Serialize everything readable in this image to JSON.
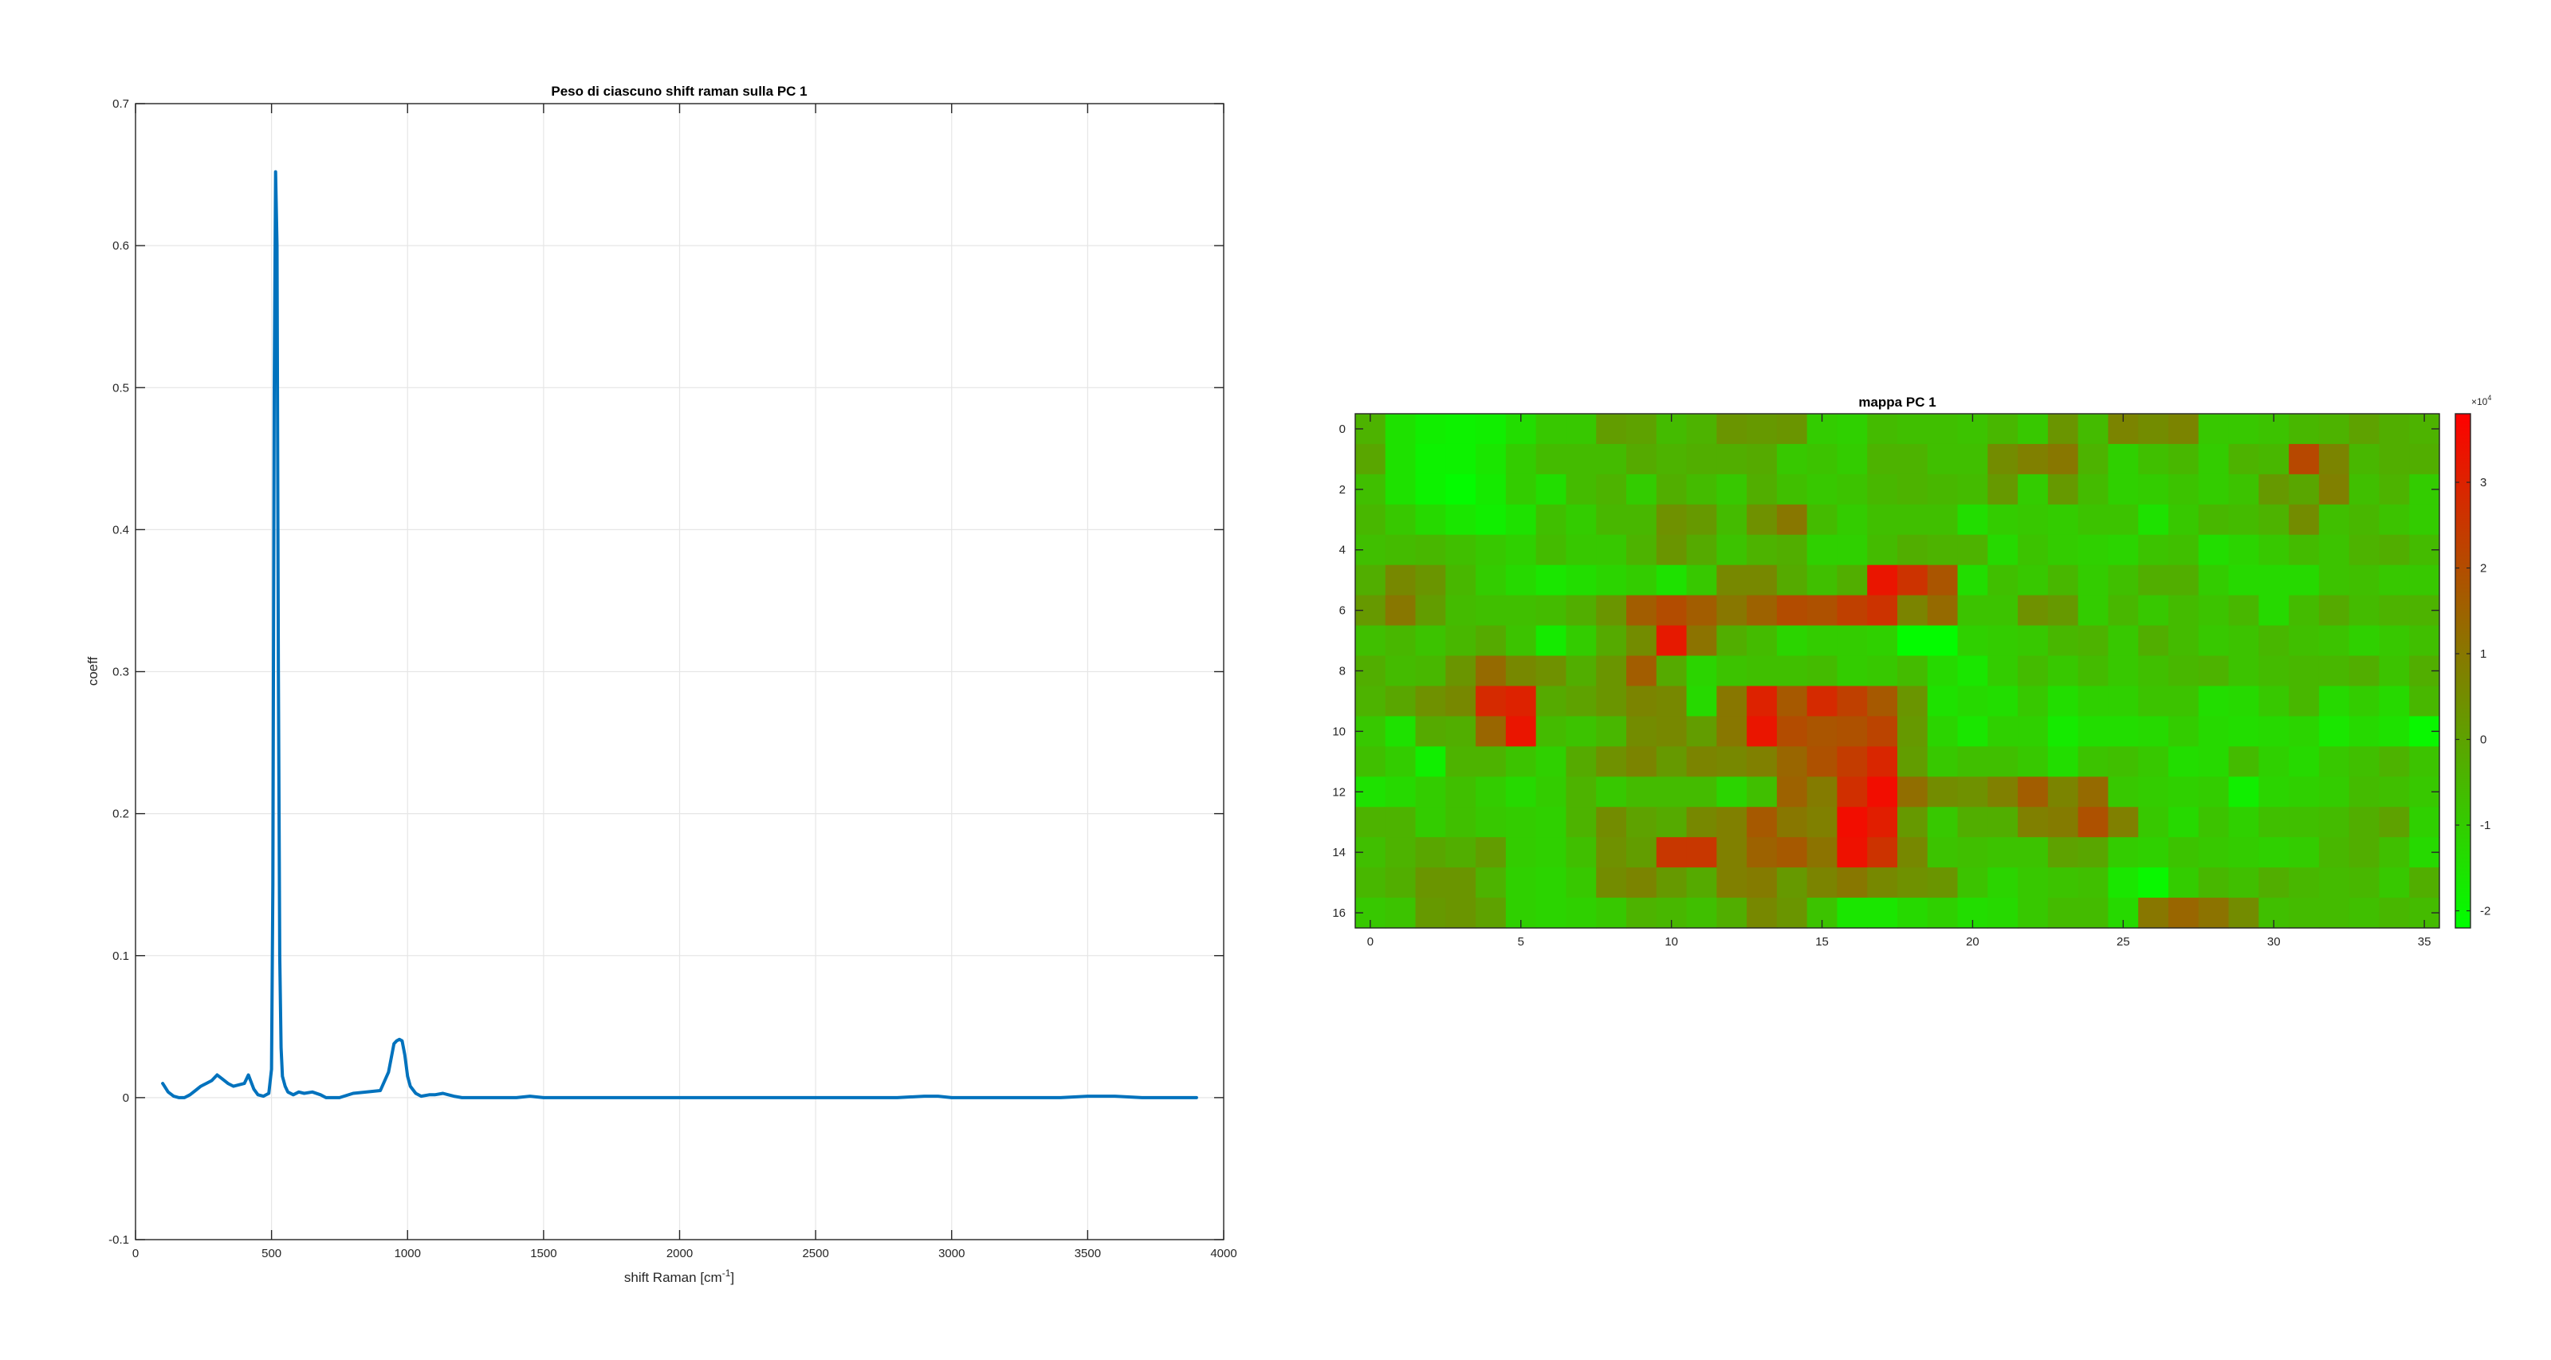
{
  "chart_data": [
    {
      "type": "line",
      "title": "Peso di ciascuno shift raman sulla PC 1",
      "xlabel": "shift Raman [cm",
      "xlabel_sup": "-1",
      "xlabel_end": "]",
      "ylabel": "coeff",
      "xlim": [
        0,
        4000
      ],
      "ylim": [
        -0.1,
        0.7
      ],
      "xticks": [
        0,
        500,
        1000,
        1500,
        2000,
        2500,
        3000,
        3500,
        4000
      ],
      "xtick_labels": [
        "0",
        "500",
        "1000",
        "1500",
        "2000",
        "2500",
        "3000",
        "3500",
        "4000"
      ],
      "yticks": [
        -0.1,
        0,
        0.1,
        0.2,
        0.3,
        0.4,
        0.5,
        0.6,
        0.7
      ],
      "ytick_labels": [
        "-0.1",
        "0",
        "0.1",
        "0.2",
        "0.3",
        "0.4",
        "0.5",
        "0.6",
        "0.7"
      ],
      "grid": true,
      "line_color": "#0072BD",
      "x": [
        100,
        120,
        140,
        160,
        180,
        200,
        220,
        240,
        260,
        280,
        300,
        320,
        340,
        360,
        380,
        400,
        415,
        425,
        435,
        450,
        470,
        490,
        500,
        505,
        510,
        515,
        520,
        525,
        530,
        535,
        540,
        550,
        560,
        580,
        600,
        620,
        650,
        680,
        700,
        750,
        800,
        850,
        900,
        930,
        950,
        960,
        970,
        980,
        990,
        1000,
        1010,
        1030,
        1050,
        1080,
        1100,
        1130,
        1150,
        1170,
        1200,
        1250,
        1300,
        1400,
        1450,
        1500,
        1600,
        1800,
        2000,
        2200,
        2400,
        2600,
        2800,
        2900,
        2950,
        3000,
        3200,
        3400,
        3500,
        3600,
        3700,
        3800,
        3900
      ],
      "y": [
        0.01,
        0.004,
        0.001,
        0.0,
        0.0,
        0.002,
        0.005,
        0.008,
        0.01,
        0.012,
        0.016,
        0.013,
        0.01,
        0.008,
        0.009,
        0.01,
        0.016,
        0.011,
        0.006,
        0.002,
        0.001,
        0.003,
        0.02,
        0.15,
        0.5,
        0.652,
        0.6,
        0.3,
        0.1,
        0.035,
        0.015,
        0.008,
        0.004,
        0.002,
        0.004,
        0.003,
        0.004,
        0.002,
        0.0,
        0.0,
        0.003,
        0.004,
        0.005,
        0.018,
        0.038,
        0.04,
        0.041,
        0.04,
        0.03,
        0.015,
        0.008,
        0.003,
        0.001,
        0.002,
        0.002,
        0.003,
        0.002,
        0.001,
        0.0,
        0.0,
        0.0,
        0.0,
        0.001,
        0.0,
        0.0,
        0.0,
        0.0,
        0.0,
        0.0,
        0.0,
        0.0,
        0.001,
        0.001,
        0.0,
        0.0,
        0.0,
        0.001,
        0.001,
        0.0,
        0.0,
        0.0
      ]
    },
    {
      "type": "heatmap",
      "title": "mappa PC 1",
      "xlim": [
        -0.5,
        35.5
      ],
      "ylim": [
        -0.5,
        16.5
      ],
      "y_reversed": true,
      "xticks": [
        0,
        5,
        10,
        15,
        20,
        25,
        30,
        35
      ],
      "xtick_labels": [
        "0",
        "5",
        "10",
        "15",
        "20",
        "25",
        "30",
        "35"
      ],
      "yticks": [
        0,
        2,
        4,
        6,
        8,
        10,
        12,
        14,
        16
      ],
      "ytick_labels": [
        "0",
        "2",
        "4",
        "6",
        "8",
        "10",
        "12",
        "14",
        "16"
      ],
      "colormap": [
        "#00FF00",
        "#FF0000"
      ],
      "colorbar": {
        "ticks": [
          -2,
          -1,
          0,
          1,
          2,
          3
        ],
        "tick_labels": [
          "-2",
          "-1",
          "0",
          "1",
          "2",
          "3"
        ],
        "range": [
          -2.2,
          3.8
        ],
        "multiplier_base": "×10",
        "multiplier_exp": "4"
      },
      "values": [
        [
          -0.4,
          -1.5,
          -1.8,
          -1.9,
          -1.8,
          -1.4,
          -0.9,
          -0.9,
          0.1,
          0.0,
          -0.6,
          -0.4,
          0.3,
          0.2,
          0.3,
          -1.0,
          -1.1,
          -0.6,
          -0.7,
          -0.7,
          -0.8,
          -0.5,
          -0.9,
          0.3,
          -0.6,
          0.7,
          0.5,
          0.7,
          -0.9,
          -0.9,
          -0.8,
          -0.5,
          -0.4,
          0.0,
          -0.3,
          -0.4
        ],
        [
          -0.1,
          -1.5,
          -1.9,
          -1.9,
          -1.6,
          -1.0,
          -0.6,
          -0.6,
          -0.6,
          -0.2,
          -0.4,
          -0.3,
          -0.3,
          -0.2,
          -0.9,
          -0.8,
          -1.0,
          -0.4,
          -0.4,
          -0.7,
          -0.7,
          0.5,
          0.8,
          1.0,
          -0.4,
          -1.1,
          -0.7,
          -0.5,
          -1.0,
          -0.4,
          -0.5,
          2.1,
          0.7,
          -0.5,
          -0.3,
          -0.3
        ],
        [
          -0.7,
          -1.5,
          -1.9,
          -2.1,
          -1.7,
          -1.0,
          -1.4,
          -0.6,
          -0.4,
          -1.0,
          -0.3,
          -0.6,
          -0.9,
          -0.3,
          -0.7,
          -0.9,
          -0.8,
          -0.5,
          -0.4,
          -0.5,
          -0.6,
          0.2,
          -1.0,
          0.2,
          -0.6,
          -1.1,
          -1.0,
          -0.8,
          -1.0,
          -0.8,
          0.2,
          -0.1,
          0.8,
          -0.7,
          -0.4,
          -1.0
        ],
        [
          -0.5,
          -0.9,
          -1.3,
          -1.6,
          -1.8,
          -1.5,
          -0.7,
          -1.0,
          -0.5,
          -0.5,
          0.4,
          0.2,
          -0.6,
          0.4,
          1.0,
          -0.6,
          -1.0,
          -0.7,
          -0.7,
          -0.7,
          -1.4,
          -1.0,
          -0.9,
          -1.0,
          -0.8,
          -0.8,
          -1.5,
          -0.9,
          -0.5,
          -0.6,
          -0.4,
          0.5,
          -0.7,
          -0.5,
          -0.8,
          -1.0
        ],
        [
          -0.7,
          -0.6,
          -0.5,
          -0.7,
          -0.9,
          -1.1,
          -0.6,
          -0.9,
          -0.9,
          -0.4,
          0.3,
          -0.2,
          -0.8,
          -0.4,
          -0.3,
          -1.1,
          -1.1,
          -0.6,
          -0.3,
          -0.4,
          -0.4,
          -1.3,
          -0.8,
          -1.0,
          -1.1,
          -1.2,
          -0.8,
          -0.7,
          -1.4,
          -1.2,
          -0.9,
          -0.6,
          -0.8,
          -0.4,
          -0.3,
          -0.6
        ],
        [
          -0.3,
          0.6,
          0.3,
          -0.5,
          -1.0,
          -1.3,
          -1.6,
          -1.4,
          -1.2,
          -1.0,
          -1.5,
          -0.9,
          0.6,
          0.6,
          -0.2,
          -0.7,
          -0.3,
          3.3,
          2.6,
          1.8,
          -1.4,
          -0.7,
          -0.9,
          -0.5,
          -1.0,
          -0.7,
          -0.3,
          -0.3,
          -1.0,
          -1.3,
          -1.3,
          -1.3,
          -0.8,
          -0.7,
          -0.9,
          -0.9
        ],
        [
          0.2,
          1.0,
          0.1,
          -0.6,
          -0.7,
          -0.7,
          -0.6,
          -0.3,
          0.3,
          1.6,
          2.0,
          1.6,
          1.0,
          1.5,
          2.0,
          1.9,
          2.3,
          2.6,
          0.7,
          1.3,
          -0.8,
          -0.8,
          0.4,
          0.2,
          -1.0,
          -0.5,
          -0.9,
          -0.6,
          -0.8,
          -0.5,
          -1.3,
          -0.6,
          -0.2,
          -0.6,
          -0.4,
          -0.4
        ],
        [
          -0.7,
          -0.5,
          -0.8,
          -0.5,
          -0.2,
          -0.8,
          -1.7,
          -1.0,
          -0.2,
          0.5,
          3.2,
          1.1,
          -0.3,
          -0.6,
          -1.2,
          -1.0,
          -1.0,
          -1.1,
          -2.1,
          -2.1,
          -1.1,
          -1.0,
          -0.9,
          -0.5,
          -0.4,
          -0.9,
          -0.3,
          -0.6,
          -0.9,
          -0.8,
          -0.5,
          -0.7,
          -0.8,
          -1.1,
          -0.9,
          -0.7
        ],
        [
          -0.3,
          -0.6,
          -0.5,
          0.3,
          1.3,
          0.6,
          0.4,
          -0.3,
          0.3,
          1.6,
          -0.2,
          -1.2,
          -0.8,
          -0.7,
          -0.7,
          -0.6,
          -1.0,
          -0.9,
          -0.6,
          -1.3,
          -1.6,
          -1.0,
          -0.6,
          -0.9,
          -0.6,
          -0.9,
          -0.7,
          -0.5,
          -0.4,
          -0.8,
          -0.6,
          -0.5,
          -0.5,
          -0.3,
          -0.8,
          -0.3
        ],
        [
          -0.4,
          -0.1,
          0.4,
          0.6,
          2.8,
          3.0,
          -0.2,
          0.0,
          0.3,
          0.7,
          0.6,
          -1.3,
          1.0,
          3.0,
          1.7,
          2.8,
          2.3,
          1.7,
          0.3,
          -1.5,
          -1.3,
          -1.4,
          -0.9,
          -1.4,
          -1.1,
          -1.1,
          -0.8,
          -0.8,
          -1.4,
          -1.3,
          -0.9,
          -0.5,
          -1.3,
          -1.0,
          -1.3,
          -0.5
        ],
        [
          -0.9,
          -1.5,
          -0.2,
          -0.3,
          1.4,
          3.3,
          -0.6,
          -0.8,
          -0.5,
          0.5,
          0.6,
          0.1,
          1.0,
          3.3,
          2.0,
          1.8,
          1.9,
          2.2,
          0.2,
          -1.2,
          -1.6,
          -1.1,
          -1.1,
          -1.7,
          -1.4,
          -1.4,
          -1.3,
          -1.0,
          -1.3,
          -1.4,
          -1.3,
          -1.2,
          -1.6,
          -1.3,
          -1.5,
          -2.0
        ],
        [
          -0.7,
          -1.0,
          -1.8,
          -0.4,
          -0.4,
          -0.8,
          -1.1,
          -0.2,
          0.4,
          0.7,
          0.2,
          0.7,
          0.6,
          0.8,
          1.4,
          1.9,
          2.4,
          2.9,
          0.1,
          -0.9,
          -0.7,
          -0.7,
          -0.9,
          -1.4,
          -0.8,
          -0.7,
          -0.9,
          -1.4,
          -1.3,
          -0.6,
          -1.1,
          -1.3,
          -0.9,
          -0.7,
          -0.4,
          -0.8
        ],
        [
          -1.5,
          -1.3,
          -1.0,
          -0.7,
          -1.0,
          -1.3,
          -1.0,
          -0.4,
          -0.9,
          -0.6,
          -0.6,
          -0.6,
          -1.2,
          -0.7,
          1.5,
          0.9,
          2.7,
          3.5,
          1.2,
          0.5,
          0.4,
          0.8,
          1.6,
          0.7,
          1.3,
          -0.9,
          -1.0,
          -1.1,
          -1.0,
          -1.8,
          -1.2,
          -1.1,
          -1.0,
          -0.6,
          -0.7,
          -0.9
        ],
        [
          -0.4,
          -0.4,
          -1.0,
          -0.7,
          -0.9,
          -1.0,
          -1.1,
          -0.4,
          0.5,
          0.0,
          -0.2,
          0.6,
          0.8,
          1.7,
          1.0,
          0.8,
          3.5,
          3.1,
          0.2,
          -0.9,
          -0.3,
          -0.3,
          0.8,
          0.9,
          1.9,
          0.8,
          -0.9,
          -1.3,
          -0.8,
          -1.1,
          -0.7,
          -0.7,
          -0.6,
          -0.3,
          0.0,
          -1.1
        ],
        [
          -0.7,
          -0.4,
          -0.1,
          -0.3,
          0.1,
          -1.0,
          -1.1,
          -0.7,
          0.4,
          0.1,
          2.5,
          2.5,
          0.8,
          1.5,
          1.7,
          1.1,
          3.4,
          2.6,
          0.6,
          -0.8,
          -0.7,
          -0.8,
          -0.8,
          0.0,
          -0.1,
          -1.0,
          -1.1,
          -0.8,
          -0.9,
          -1.0,
          -1.1,
          -1.0,
          -0.5,
          -0.3,
          -0.7,
          -1.3
        ],
        [
          -0.5,
          -0.3,
          0.3,
          0.3,
          -0.4,
          -1.1,
          -1.2,
          -0.9,
          0.5,
          0.7,
          0.2,
          -0.2,
          0.8,
          0.9,
          0.2,
          0.7,
          1.0,
          0.6,
          0.4,
          0.3,
          -0.8,
          -1.2,
          -0.9,
          -0.8,
          -0.7,
          -1.6,
          -2.0,
          -1.0,
          -0.5,
          -0.7,
          -0.3,
          -0.5,
          -0.6,
          -0.5,
          -0.9,
          -0.3
        ],
        [
          -0.9,
          -0.8,
          0.2,
          0.3,
          0.0,
          -1.1,
          -1.2,
          -1.1,
          -0.9,
          -0.4,
          -0.5,
          -0.7,
          -0.3,
          0.6,
          0.3,
          -0.8,
          -1.6,
          -1.6,
          -1.3,
          -1.1,
          -1.4,
          -1.3,
          -0.9,
          -0.6,
          -0.6,
          -1.3,
          1.0,
          1.4,
          1.1,
          0.5,
          -0.7,
          -0.6,
          -0.6,
          -0.7,
          -0.5,
          -0.6
        ]
      ]
    }
  ]
}
